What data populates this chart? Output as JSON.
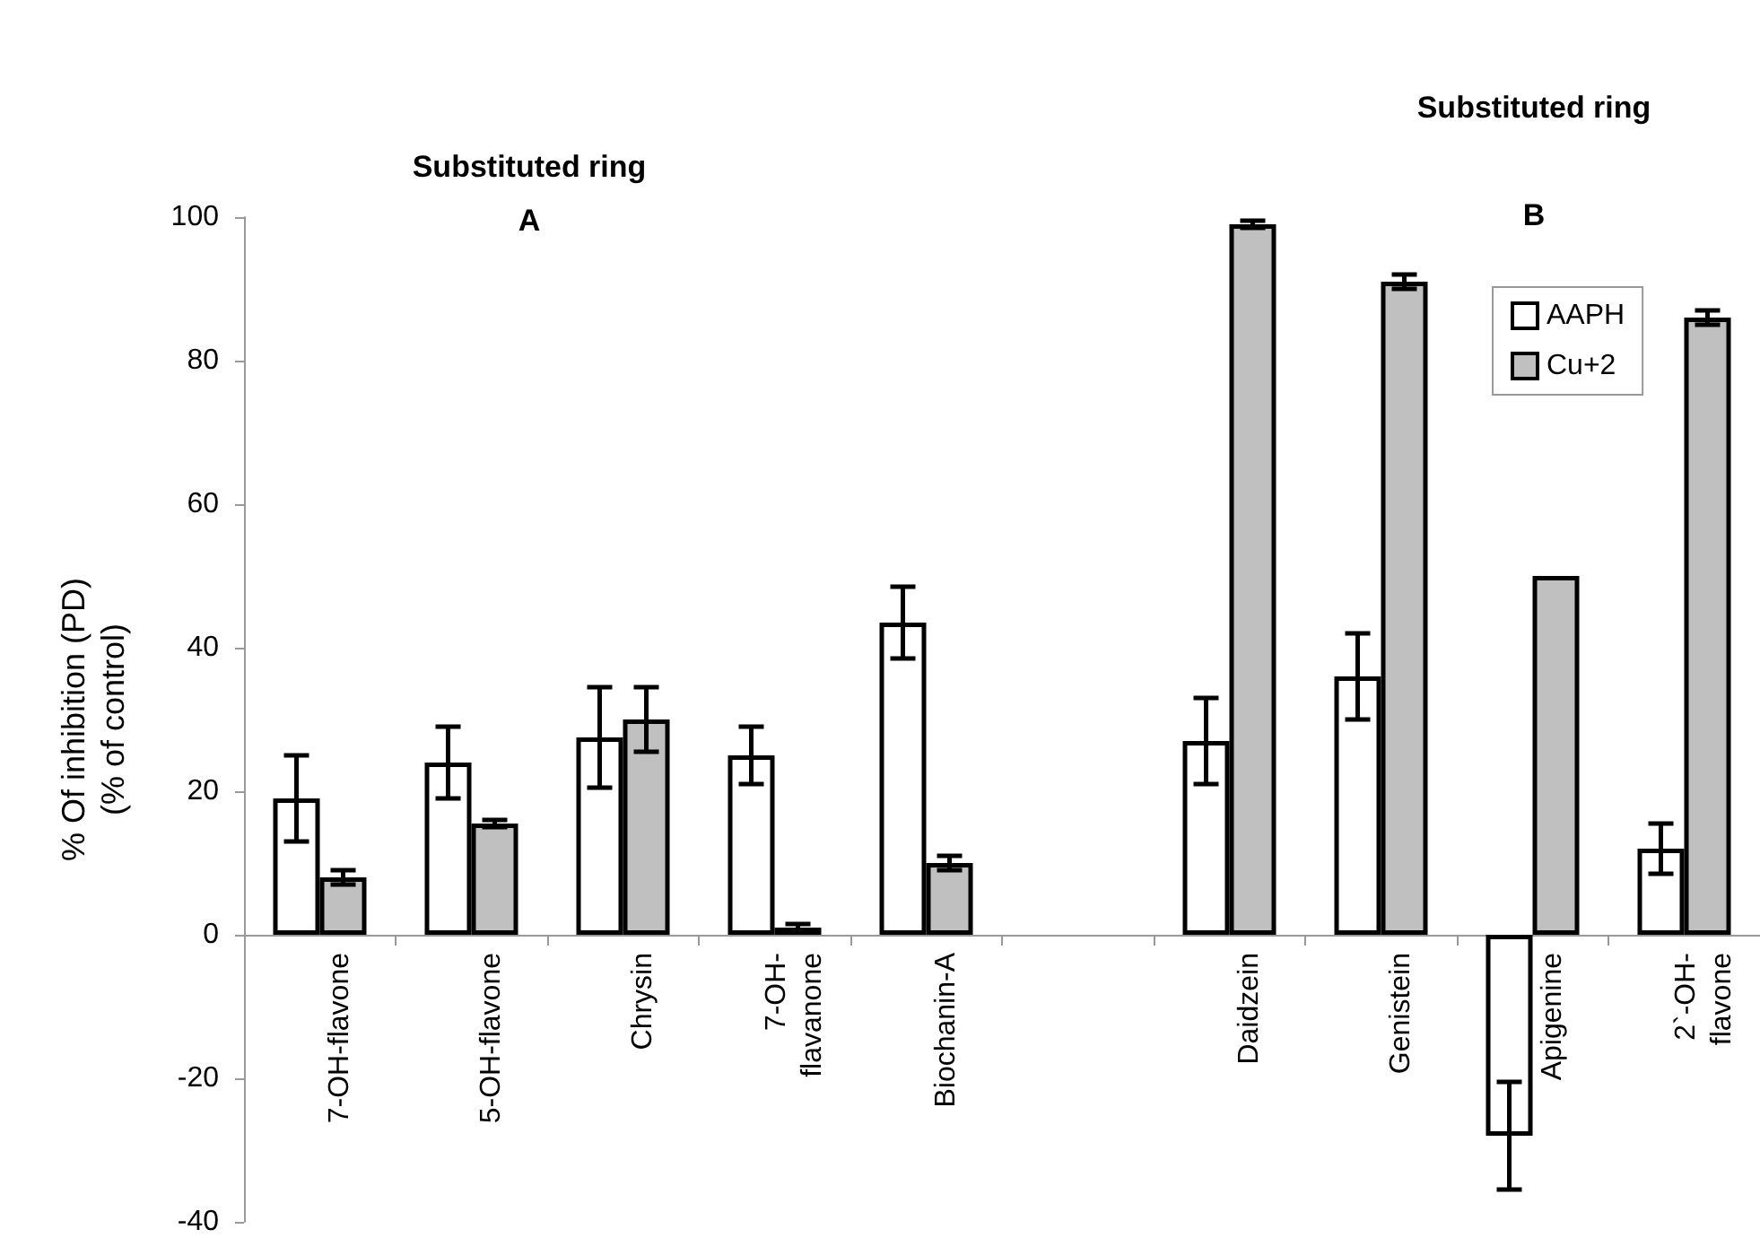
{
  "chart_data": {
    "type": "bar",
    "ylabel": "% Of inhibition (PD)\n(% of control)",
    "annotations": [
      "Substituted ring\nA",
      "Substituted ring\n\nB"
    ],
    "categories": [
      "7-OH-flavone",
      "5-OH-flavone",
      "Chrysin",
      "7-OH-\nflavanone",
      "Biochanin-A",
      null,
      "Daidzein",
      "Genistein",
      "Apigenine",
      "2`-OH-\nflavone"
    ],
    "series": [
      {
        "name": "AAPH",
        "color": "#ffffff",
        "values": [
          19,
          24,
          27.5,
          25,
          43.5,
          null,
          27,
          36,
          -28,
          12
        ],
        "errors": [
          6,
          5,
          7,
          4,
          5,
          null,
          6,
          6,
          7.5,
          3.5
        ]
      },
      {
        "name": "Cu+2",
        "color": "#c0c0c0",
        "values": [
          8,
          15.5,
          30,
          1,
          10,
          null,
          99,
          91,
          50,
          86
        ],
        "errors": [
          1,
          0.5,
          4.5,
          0.5,
          1,
          null,
          0.5,
          1,
          null,
          1
        ]
      }
    ],
    "ylim": [
      -40,
      100
    ],
    "yticks": [
      -40,
      -20,
      0,
      20,
      40,
      60,
      80,
      100
    ],
    "legend": "top right"
  }
}
